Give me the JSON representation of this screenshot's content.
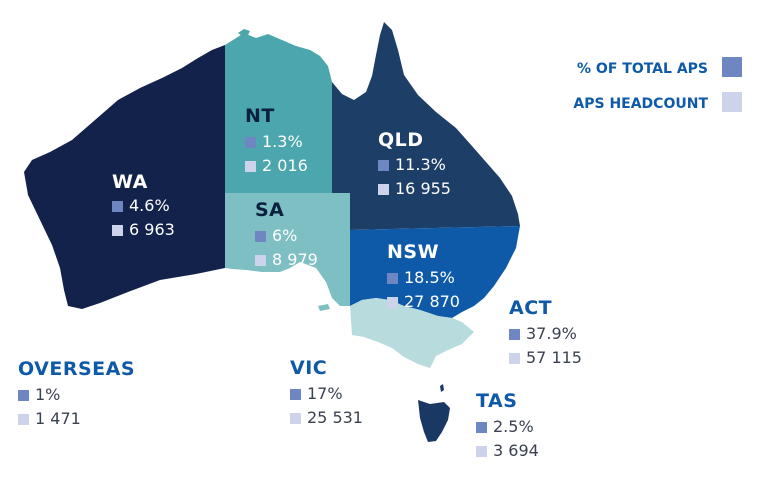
{
  "legend": {
    "pct_label": "% OF TOTAL APS",
    "headcount_label": "APS HEADCOUNT",
    "pct_color": "#6e86c2",
    "headcount_color": "#cdd3ea"
  },
  "regions": {
    "wa": {
      "name": "WA",
      "pct": "4.6%",
      "headcount": "6 963",
      "color": "#13224a"
    },
    "nt": {
      "name": "NT",
      "pct": "1.3%",
      "headcount": "2 016",
      "color": "#4ba7ad"
    },
    "qld": {
      "name": "QLD",
      "pct": "11.3%",
      "headcount": "16 955",
      "color": "#1d3e66"
    },
    "sa": {
      "name": "SA",
      "pct": "6%",
      "headcount": "8 979",
      "color": "#7ebfc3"
    },
    "nsw": {
      "name": "NSW",
      "pct": "18.5%",
      "headcount": "27 870",
      "color": "#0f5aa8"
    },
    "act": {
      "name": "ACT",
      "pct": "37.9%",
      "headcount": "57 115"
    },
    "vic": {
      "name": "VIC",
      "pct": "17%",
      "headcount": "25 531",
      "color": "#b8dbde"
    },
    "tas": {
      "name": "TAS",
      "pct": "2.5%",
      "headcount": "3 694",
      "color": "#1a3864"
    },
    "overseas": {
      "name": "OVERSEAS",
      "pct": "1%",
      "headcount": "1 471"
    }
  }
}
